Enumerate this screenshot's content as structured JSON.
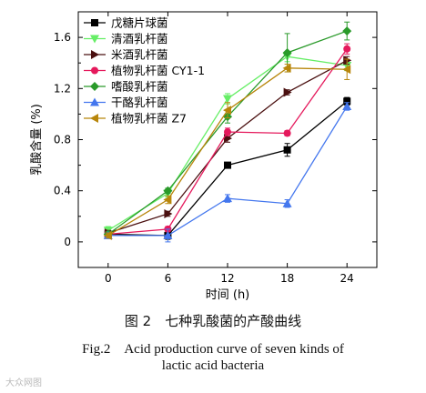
{
  "chart_data": {
    "type": "line",
    "x": [
      0,
      6,
      12,
      18,
      24
    ],
    "xlabel": "时间 (h)",
    "ylabel": "乳酸含量 (%)",
    "xlim": [
      -3,
      27
    ],
    "ylim": [
      -0.2,
      1.8
    ],
    "xticks": [
      "0",
      "6",
      "12",
      "18",
      "24"
    ],
    "yticks": [
      "0",
      "0.4",
      "0.8",
      "1.2",
      "1.6"
    ],
    "grid": false,
    "legend_position": "top-left",
    "series": [
      {
        "name": "戊糖片球菌",
        "color": "#000000",
        "marker": "square",
        "values": [
          0.06,
          0.05,
          0.6,
          0.72,
          1.1
        ],
        "errors": [
          0.02,
          0.03,
          0.02,
          0.05,
          0.03
        ]
      },
      {
        "name": "清酒乳杆菌",
        "color": "#66ee66",
        "marker": "triangle-down",
        "values": [
          0.09,
          0.38,
          1.12,
          1.45,
          1.38
        ],
        "errors": [
          0.03,
          0.03,
          0.04,
          0.04,
          0.04
        ]
      },
      {
        "name": "米酒乳杆菌",
        "color": "#4a1010",
        "marker": "triangle-right",
        "values": [
          0.07,
          0.22,
          0.81,
          1.17,
          1.42
        ],
        "errors": [
          0.02,
          0.02,
          0.03,
          0.02,
          0.03
        ]
      },
      {
        "name": "植物乳杆菌 CY1-1",
        "color": "#e5195c",
        "marker": "circle",
        "values": [
          0.06,
          0.1,
          0.86,
          0.85,
          1.51
        ],
        "errors": [
          0.02,
          0.02,
          0.03,
          0.02,
          0.04
        ]
      },
      {
        "name": "嗜酸乳杆菌",
        "color": "#2a9a2a",
        "marker": "diamond",
        "values": [
          0.06,
          0.4,
          0.98,
          1.48,
          1.65
        ],
        "errors": [
          0.02,
          0.02,
          0.05,
          0.15,
          0.07
        ]
      },
      {
        "name": "干酪乳杆菌",
        "color": "#4477ee",
        "marker": "triangle-up",
        "values": [
          0.05,
          0.05,
          0.34,
          0.3,
          1.06
        ],
        "errors": [
          0.02,
          0.05,
          0.03,
          0.03,
          0.03
        ]
      },
      {
        "name": "植物乳杆菌 Z7",
        "color": "#b8860b",
        "marker": "triangle-left",
        "values": [
          0.05,
          0.33,
          1.03,
          1.36,
          1.35
        ],
        "errors": [
          0.02,
          0.03,
          0.06,
          0.03,
          0.08
        ]
      }
    ]
  },
  "caption": {
    "cn": "图 2　七种乳酸菌的产酸曲线",
    "en_line1": "Fig.2　Acid production curve of seven kinds of",
    "en_line2": "lactic acid bacteria"
  },
  "watermark": "大众网图"
}
